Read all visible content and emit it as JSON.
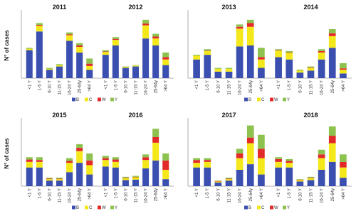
{
  "chart_data": [
    {
      "type": "bar",
      "stacked": true,
      "ylabel": "N° of cases",
      "ylim": [
        0,
        140
      ],
      "legend": "bottom",
      "categories": [
        "<1 Y",
        "1-5 Y",
        "6-10 Y",
        "11-15 Y",
        "16-24 Y",
        "25-64y",
        ">64 Y"
      ],
      "series": [
        {
          "name": "B",
          "color": "#3b4fb0"
        },
        {
          "name": "C",
          "color": "#f4e81a"
        },
        {
          "name": "W",
          "color": "#e32a2a"
        },
        {
          "name": "Y",
          "color": "#8dc24f"
        }
      ],
      "groups": [
        {
          "name": "2011",
          "values": [
            [
              60,
              100,
              18,
              25,
              80,
              55,
              18
            ],
            [
              3,
              12,
              2,
              3,
              12,
              12,
              8
            ],
            [
              0,
              2,
              0,
              0,
              2,
              3,
              5
            ],
            [
              2,
              4,
              2,
              2,
              4,
              5,
              11
            ]
          ]
        },
        {
          "name": "2012",
          "values": [
            [
              50,
              70,
              22,
              25,
              85,
              70,
              28
            ],
            [
              6,
              12,
              2,
              2,
              28,
              15,
              12
            ],
            [
              1,
              2,
              0,
              0,
              4,
              4,
              5
            ],
            [
              3,
              4,
              1,
              1,
              8,
              6,
              10
            ]
          ]
        }
      ]
    },
    {
      "type": "bar",
      "stacked": true,
      "ylim": [
        0,
        140
      ],
      "legend": "bottom",
      "categories": [
        "<1 Y",
        "1-5 Y",
        "6-10 Y",
        "11-15 Y",
        "16-24 Y",
        "25-64y",
        ">64 Y"
      ],
      "series": [
        {
          "name": "B",
          "color": "#3b4fb0"
        },
        {
          "name": "C",
          "color": "#f4e81a"
        },
        {
          "name": "W",
          "color": "#e32a2a"
        },
        {
          "name": "Y",
          "color": "#8dc24f"
        }
      ],
      "groups": [
        {
          "name": "2013",
          "values": [
            [
              40,
              50,
              14,
              14,
              68,
              70,
              22
            ],
            [
              8,
              8,
              6,
              6,
              38,
              40,
              18
            ],
            [
              0,
              1,
              0,
              0,
              4,
              8,
              5
            ],
            [
              2,
              3,
              2,
              2,
              5,
              7,
              20
            ]
          ]
        },
        {
          "name": "2014",
          "values": [
            [
              45,
              40,
              12,
              16,
              40,
              65,
              10
            ],
            [
              14,
              14,
              4,
              6,
              15,
              25,
              8
            ],
            [
              1,
              1,
              0,
              1,
              3,
              6,
              3
            ],
            [
              2,
              3,
              2,
              2,
              4,
              9,
              11
            ]
          ]
        }
      ]
    },
    {
      "type": "bar",
      "stacked": true,
      "ylabel": "N° of cases",
      "ylim": [
        0,
        140
      ],
      "legend": "bottom",
      "categories": [
        "<1 Y",
        "1-5 Y",
        "6-10 Y",
        "11-15 Y",
        "16-24 Y",
        "25-64y",
        ">64 Y"
      ],
      "series": [
        {
          "name": "B",
          "color": "#3b4fb0"
        },
        {
          "name": "C",
          "color": "#f4e81a"
        },
        {
          "name": "W",
          "color": "#e32a2a"
        },
        {
          "name": "Y",
          "color": "#8dc24f"
        }
      ],
      "groups": [
        {
          "name": "2015",
          "values": [
            [
              40,
              40,
              12,
              12,
              30,
              50,
              25
            ],
            [
              12,
              12,
              3,
              3,
              20,
              25,
              20
            ],
            [
              5,
              4,
              1,
              1,
              4,
              7,
              10
            ],
            [
              5,
              6,
              2,
              2,
              6,
              8,
              15
            ]
          ]
        },
        {
          "name": "2016",
          "values": [
            [
              42,
              40,
              13,
              14,
              38,
              55,
              15
            ],
            [
              14,
              12,
              4,
              5,
              18,
              38,
              20
            ],
            [
              4,
              5,
              1,
              1,
              6,
              12,
              20
            ],
            [
              5,
              5,
              2,
              2,
              6,
              18,
              15
            ]
          ]
        }
      ]
    },
    {
      "type": "bar",
      "stacked": true,
      "ylim": [
        0,
        140
      ],
      "legend": "bottom",
      "categories": [
        "<1 Y",
        "1-5 Y",
        "6-10 Y",
        "11-15 Y",
        "16-24 Y",
        "25-64y",
        ">64 Y"
      ],
      "series": [
        {
          "name": "B",
          "color": "#3b4fb0"
        },
        {
          "name": "C",
          "color": "#f4e81a"
        },
        {
          "name": "W",
          "color": "#e32a2a"
        },
        {
          "name": "Y",
          "color": "#8dc24f"
        }
      ],
      "groups": [
        {
          "name": "2017",
          "values": [
            [
              40,
              40,
              8,
              12,
              35,
              47,
              25
            ],
            [
              10,
              12,
              2,
              3,
              25,
              45,
              35
            ],
            [
              6,
              4,
              1,
              1,
              10,
              12,
              20
            ],
            [
              4,
              4,
              1,
              2,
              10,
              26,
              30
            ]
          ]
        },
        {
          "name": "2018",
          "values": [
            [
              40,
              40,
              10,
              13,
              35,
              52,
              18
            ],
            [
              12,
              10,
              3,
              4,
              25,
              40,
              22
            ],
            [
              6,
              4,
              1,
              1,
              8,
              16,
              12
            ],
            [
              4,
              4,
              1,
              2,
              10,
              20,
              16
            ]
          ]
        }
      ]
    }
  ]
}
